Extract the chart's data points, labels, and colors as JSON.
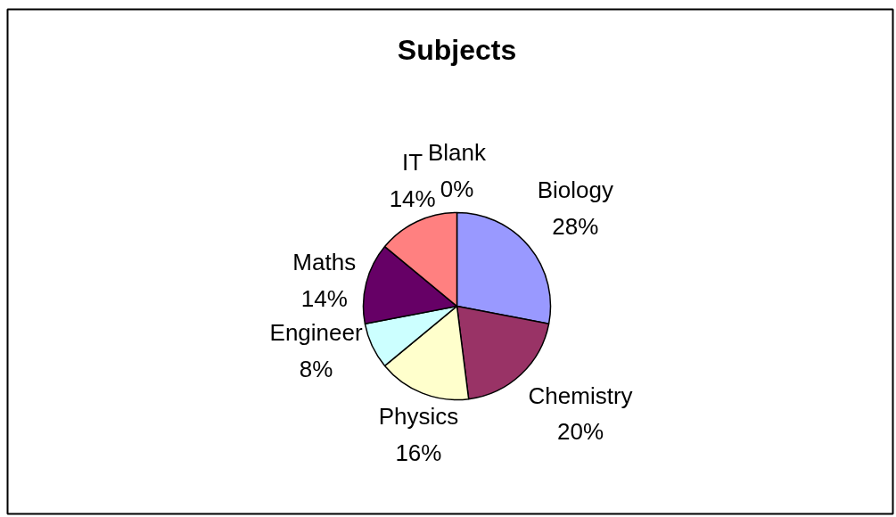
{
  "chart_data": {
    "type": "pie",
    "title": "Subjects",
    "categories": [
      "Biology",
      "Chemistry",
      "Physics",
      "Engineer",
      "Maths",
      "IT",
      "Blank"
    ],
    "values": [
      28,
      20,
      16,
      8,
      14,
      14,
      0
    ],
    "colors": [
      "#9999ff",
      "#993366",
      "#ffffcc",
      "#ccffff",
      "#660066",
      "#ff8080",
      "#0066cc"
    ],
    "value_labels": [
      "28%",
      "20%",
      "16%",
      "8%",
      "14%",
      "14%",
      "0%"
    ]
  }
}
